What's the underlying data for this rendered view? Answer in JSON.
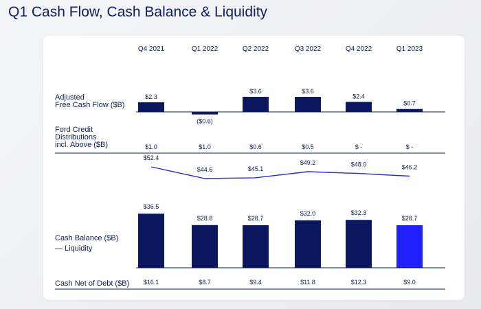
{
  "page": {
    "title": "Q1 Cash Flow, Cash Balance & Liquidity"
  },
  "chart_data": {
    "type": "bar",
    "categories": [
      "Q4 2021",
      "Q1 2022",
      "Q2 2022",
      "Q3 2022",
      "Q4 2022",
      "Q1 2023"
    ],
    "rows": {
      "fcf": {
        "label_lines": [
          "Adjusted",
          "Free Cash Flow ($B)"
        ],
        "values": [
          2.3,
          -0.6,
          3.6,
          3.6,
          2.4,
          0.7
        ],
        "labels": [
          "$2.3",
          "($0.6)",
          "$3.6",
          "$3.6",
          "$2.4",
          "$0.7"
        ]
      },
      "ford_credit": {
        "label_lines": [
          "Ford Credit",
          "Distributions",
          "incl. Above ($B)"
        ],
        "labels": [
          "$1.0",
          "$1.0",
          "$0.6",
          "$0.5",
          "$ -",
          "$ -"
        ]
      },
      "cash_balance": {
        "label": "Cash Balance ($B)",
        "values": [
          36.5,
          28.8,
          28.7,
          32.0,
          32.3,
          28.7
        ],
        "labels": [
          "$36.5",
          "$28.8",
          "$28.7",
          "$32.0",
          "$32.3",
          "$28.7"
        ]
      },
      "liquidity": {
        "label": "— Liquidity",
        "values": [
          52.4,
          44.6,
          45.1,
          49.2,
          48.0,
          46.2
        ],
        "labels": [
          "$52.4",
          "$44.6",
          "$45.1",
          "$49.2",
          "$48.0",
          "$46.2"
        ]
      },
      "cash_net_debt": {
        "label": "Cash Net of Debt ($B)",
        "labels": [
          "$16.1",
          "$8.7",
          "$9.4",
          "$11.8",
          "$12.3",
          "$9.0"
        ]
      }
    },
    "colors": {
      "bar": "#0b1660",
      "highlight": "#1f1fff",
      "line": "#2a2acf",
      "rule": "#0b1e52"
    }
  }
}
